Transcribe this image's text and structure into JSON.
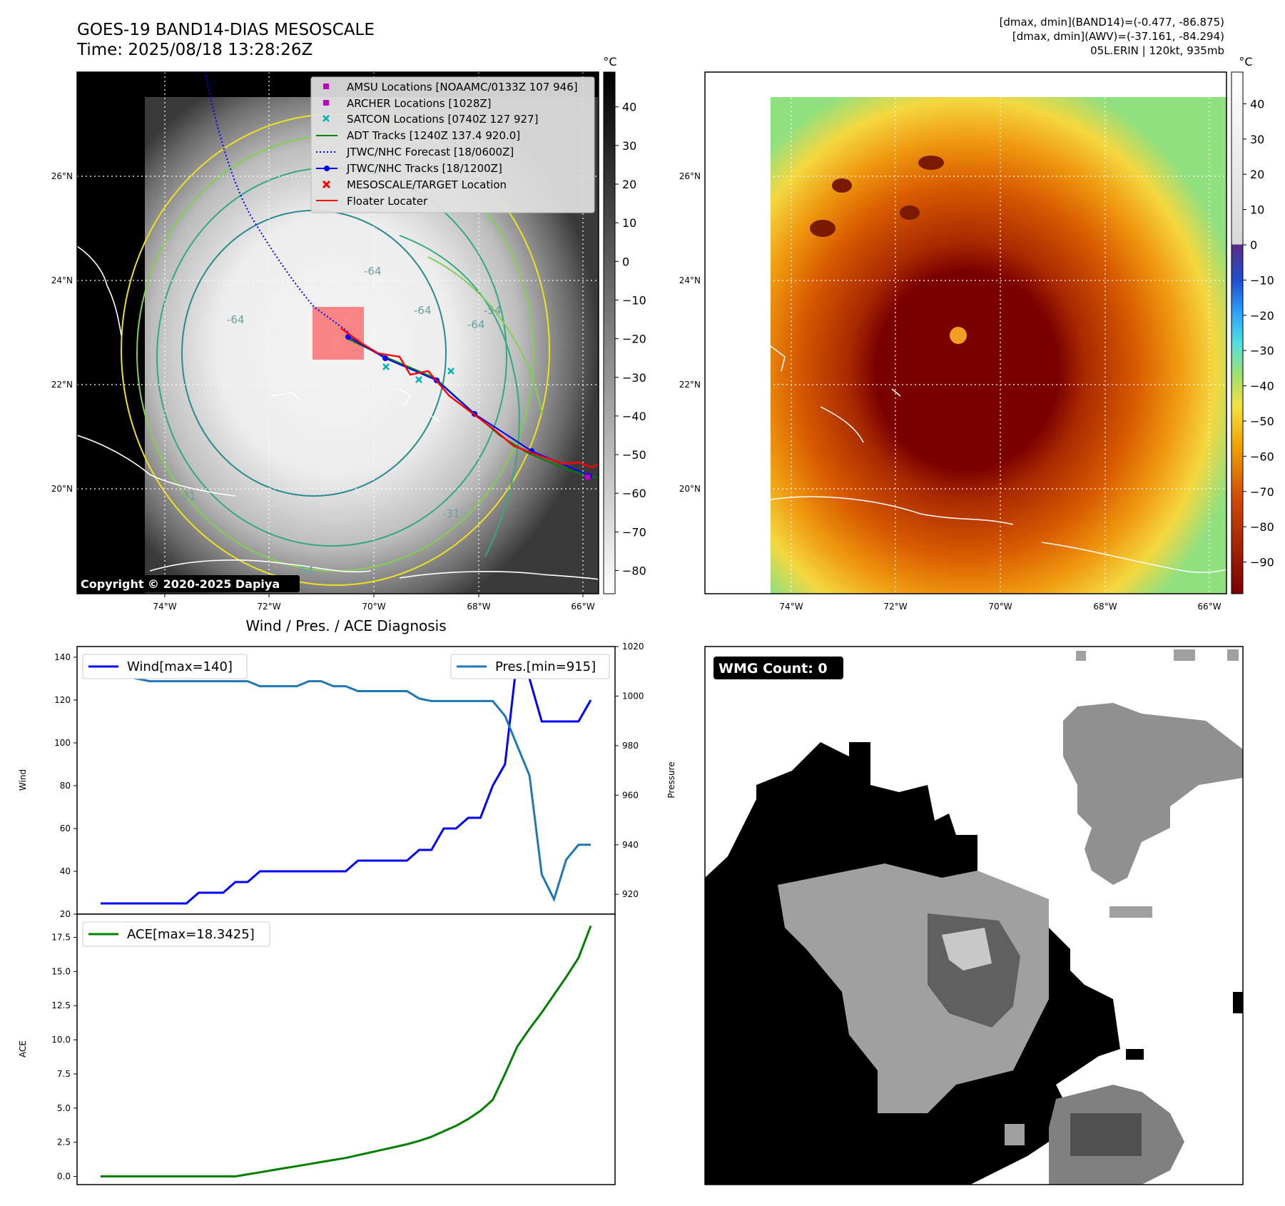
{
  "header": {
    "title_line1": "GOES-19 BAND14-DIAS MESOSCALE",
    "title_line2": "Time: 2025/08/18 13:28:26Z",
    "stats_line1": "[dmax, dmin](BAND14)=(-0.477, -86.875)",
    "stats_line2": "[dmax, dmin](AWV)=(-37.161, -84.294)",
    "stats_line3": "05L.ERIN | 120kt, 935mb"
  },
  "map_axes": {
    "lon_ticks": [
      "74°W",
      "72°W",
      "70°W",
      "68°W",
      "66°W"
    ],
    "lat_ticks": [
      "26°N",
      "24°N",
      "22°N",
      "20°N"
    ],
    "copyright": "Copyright © 2020-2025 Dapiya"
  },
  "map_legend": [
    {
      "label": "AMSU Locations [NOAAMC/0133Z 107 946]",
      "marker": "square",
      "color": "#c000c0"
    },
    {
      "label": "ARCHER Locations [1028Z]",
      "marker": "square",
      "color": "#c000c0"
    },
    {
      "label": "SATCON Locations [0740Z 127 927]",
      "marker": "x",
      "color": "#00b0b0"
    },
    {
      "label": "ADT Tracks [1240Z 137.4 920.0]",
      "marker": "line",
      "color": "#008000"
    },
    {
      "label": "JTWC/NHC Forecast [18/0600Z]",
      "marker": "dotted",
      "color": "#0000ff"
    },
    {
      "label": "JTWC/NHC Tracks [18/1200Z]",
      "marker": "line-dot",
      "color": "#0000ff"
    },
    {
      "label": "MESOSCALE/TARGET Location",
      "marker": "x",
      "color": "#ff0000"
    },
    {
      "label": "Floater Locater",
      "marker": "line",
      "color": "#ff0000"
    }
  ],
  "contour_labels": [
    "-64",
    "-64",
    "-64",
    "-64",
    "-54",
    "-31",
    "-31",
    "-54"
  ],
  "colorbar_gray": {
    "unit": "°C",
    "ticks": [
      "40",
      "30",
      "20",
      "10",
      "0",
      "−10",
      "−20",
      "−30",
      "−40",
      "−50",
      "−60",
      "−70",
      "−80"
    ]
  },
  "colorbar_awv": {
    "unit": "°C",
    "ticks": [
      "40",
      "30",
      "20",
      "10",
      "0",
      "−10",
      "−20",
      "−30",
      "−40",
      "−50",
      "−60",
      "−70",
      "−80",
      "−90"
    ]
  },
  "wmg": {
    "label": "WMG Count: 0"
  },
  "chart_data": {
    "type": "line",
    "title": "Wind / Pres. / ACE Diagnosis",
    "wind_pressure": {
      "ylabel_left": "Wind",
      "ylabel_right": "Pressure",
      "ylim_left": [
        20,
        145
      ],
      "ylim_right": [
        912,
        1020
      ],
      "yticks_left": [
        "20",
        "40",
        "60",
        "80",
        "100",
        "120",
        "140"
      ],
      "yticks_right": [
        "920",
        "940",
        "960",
        "980",
        "1000",
        "1020"
      ],
      "legend_left": "Wind[max=140]",
      "legend_right": "Pres.[min=915]",
      "x": [
        0,
        1,
        2,
        3,
        4,
        5,
        6,
        7,
        8,
        9,
        10,
        11,
        12,
        13,
        14,
        15,
        16,
        17,
        18,
        19,
        20,
        21,
        22,
        23,
        24,
        25,
        26,
        27,
        28,
        29,
        30,
        31,
        32,
        33,
        34,
        35,
        36,
        37,
        38,
        39,
        40
      ],
      "series": [
        {
          "name": "Wind",
          "color": "#0000ff",
          "values": [
            25,
            25,
            25,
            25,
            25,
            25,
            25,
            25,
            30,
            30,
            30,
            35,
            35,
            40,
            40,
            40,
            40,
            40,
            40,
            40,
            40,
            45,
            45,
            45,
            45,
            45,
            50,
            50,
            60,
            60,
            65,
            65,
            80,
            90,
            140,
            130,
            110,
            110,
            110,
            110,
            120
          ]
        },
        {
          "name": "Pres.",
          "color": "#1f77b4",
          "values": [
            1012,
            1012,
            1008,
            1007,
            1006,
            1006,
            1006,
            1006,
            1006,
            1006,
            1006,
            1006,
            1006,
            1004,
            1004,
            1004,
            1004,
            1006,
            1006,
            1004,
            1004,
            1002,
            1002,
            1002,
            1002,
            1002,
            999,
            998,
            998,
            998,
            998,
            998,
            998,
            992,
            980,
            968,
            928,
            918,
            934,
            940,
            940
          ]
        }
      ]
    },
    "ace": {
      "ylabel": "ACE",
      "ylim": [
        -0.6,
        19.2
      ],
      "yticks": [
        "0.0",
        "2.5",
        "5.0",
        "7.5",
        "10.0",
        "12.5",
        "15.0",
        "17.5"
      ],
      "legend": "ACE[max=18.3425]",
      "series": [
        {
          "name": "ACE",
          "color": "#008000",
          "values": [
            0,
            0,
            0,
            0,
            0,
            0,
            0,
            0,
            0,
            0,
            0,
            0,
            0.15,
            0.3,
            0.45,
            0.6,
            0.75,
            0.9,
            1.05,
            1.2,
            1.35,
            1.55,
            1.75,
            1.95,
            2.15,
            2.35,
            2.6,
            2.9,
            3.3,
            3.7,
            4.2,
            4.8,
            5.6,
            7.5,
            9.5,
            10.8,
            12.0,
            13.3,
            14.6,
            16.0,
            18.3425
          ]
        }
      ]
    }
  }
}
